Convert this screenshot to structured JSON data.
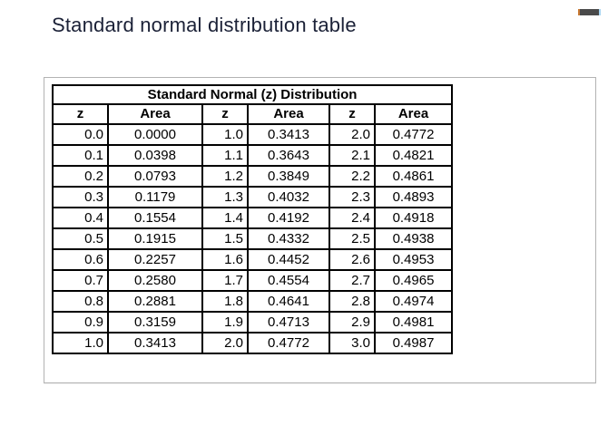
{
  "page": {
    "title": "Standard normal distribution table"
  },
  "icons": {
    "top_right": "minimize-bar-icon"
  },
  "colors": {
    "title_text": "#1b2137",
    "container_border": "#b3b3b3",
    "table_border": "#000000",
    "bar_dark": "#4a4a4a",
    "bar_orange": "#c97a33",
    "bar_blue": "#a9d6f2"
  },
  "table": {
    "title": "Standard Normal (z) Distribution",
    "headers": [
      "z",
      "Area",
      "z",
      "Area",
      "z",
      "Area"
    ],
    "rows": [
      [
        "0.0",
        "0.0000",
        "1.0",
        "0.3413",
        "2.0",
        "0.4772"
      ],
      [
        "0.1",
        "0.0398",
        "1.1",
        "0.3643",
        "2.1",
        "0.4821"
      ],
      [
        "0.2",
        "0.0793",
        "1.2",
        "0.3849",
        "2.2",
        "0.4861"
      ],
      [
        "0.3",
        "0.1179",
        "1.3",
        "0.4032",
        "2.3",
        "0.4893"
      ],
      [
        "0.4",
        "0.1554",
        "1.4",
        "0.4192",
        "2.4",
        "0.4918"
      ],
      [
        "0.5",
        "0.1915",
        "1.5",
        "0.4332",
        "2.5",
        "0.4938"
      ],
      [
        "0.6",
        "0.2257",
        "1.6",
        "0.4452",
        "2.6",
        "0.4953"
      ],
      [
        "0.7",
        "0.2580",
        "1.7",
        "0.4554",
        "2.7",
        "0.4965"
      ],
      [
        "0.8",
        "0.2881",
        "1.8",
        "0.4641",
        "2.8",
        "0.4974"
      ],
      [
        "0.9",
        "0.3159",
        "1.9",
        "0.4713",
        "2.9",
        "0.4981"
      ],
      [
        "1.0",
        "0.3413",
        "2.0",
        "0.4772",
        "3.0",
        "0.4987"
      ]
    ]
  }
}
